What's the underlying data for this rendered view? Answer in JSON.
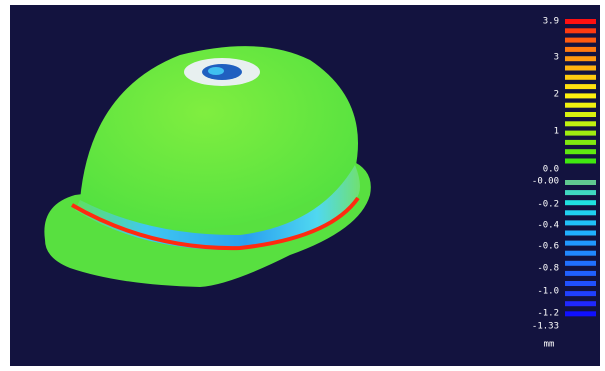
{
  "colorbar": {
    "labels": [
      "3.9",
      "3",
      "2",
      "1",
      "0.0",
      "-0.00",
      "-0.2",
      "-0.4",
      "-0.6",
      "-0.8",
      "-1.0",
      "-1.2",
      "-1.33"
    ],
    "unit": "mm",
    "positive_colors": [
      "#ff1010",
      "#ff3a10",
      "#ff5a10",
      "#ff7a10",
      "#ff9a10",
      "#ffb410",
      "#ffcc10",
      "#ffe010",
      "#fff010",
      "#f0f010",
      "#d8f010",
      "#c0f010",
      "#a0ec10",
      "#80e810",
      "#60e810",
      "#40e810"
    ],
    "negative_colors": [
      "#60c890",
      "#40d8c0",
      "#20e0e0",
      "#20d0f0",
      "#20c0f8",
      "#20b0ff",
      "#2098ff",
      "#2088ff",
      "#2070ff",
      "#2060ff",
      "#2050ff",
      "#2040ff",
      "#2028ff",
      "#1010ff"
    ]
  }
}
